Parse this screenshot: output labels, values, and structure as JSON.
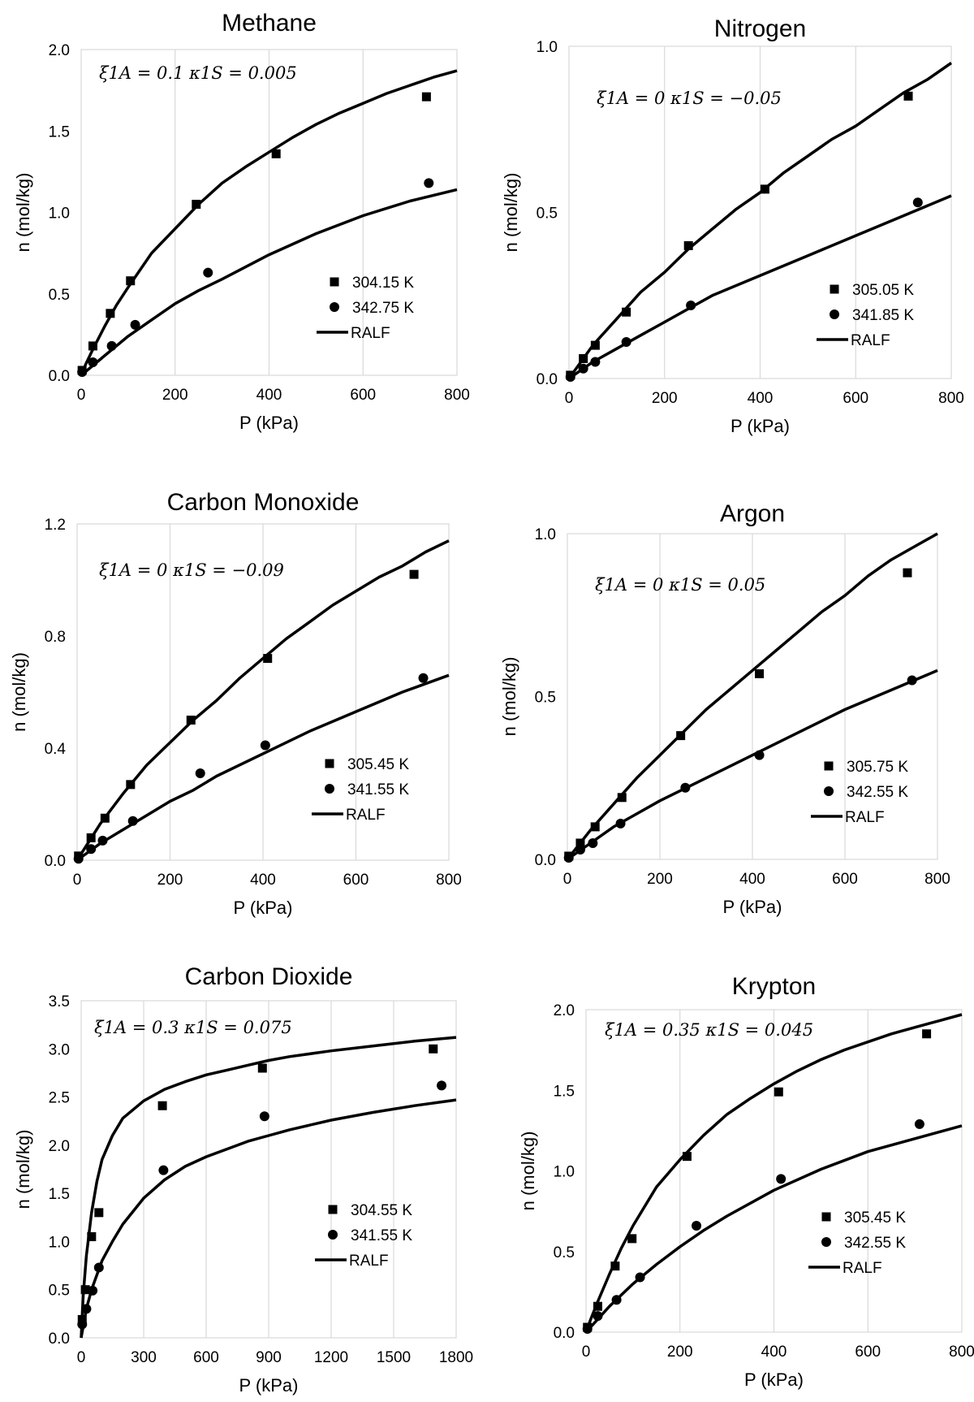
{
  "chart_data": [
    {
      "type": "scatter",
      "title": "Methane",
      "xlabel": "P (kPa)",
      "ylabel": "n (mol/kg)",
      "xlim": [
        0,
        800
      ],
      "ylim": [
        0,
        2.0
      ],
      "xticks": [
        "0",
        "200",
        "400",
        "600",
        "800"
      ],
      "yticks": [
        "0.0",
        "0.5",
        "1.0",
        "1.5",
        "2.0"
      ],
      "grid": "vertical",
      "legend_position": "lower-right",
      "annotation": "ξ1A = 0.1   κ1S = 0.005",
      "series": [
        {
          "name": "304.15 K",
          "marker": "square",
          "x": [
            2,
            25,
            62,
            105,
            245,
            415,
            735
          ],
          "y": [
            0.03,
            0.18,
            0.38,
            0.58,
            1.05,
            1.36,
            1.71
          ]
        },
        {
          "name": "342.75 K",
          "marker": "circle",
          "x": [
            2,
            25,
            65,
            115,
            270,
            740
          ],
          "y": [
            0.02,
            0.08,
            0.18,
            0.31,
            0.63,
            1.18
          ]
        },
        {
          "name": "RALF",
          "marker": "line",
          "x": [
            0,
            10,
            25,
            50,
            75,
            100,
            150,
            200,
            250,
            300,
            350,
            400,
            450,
            500,
            550,
            600,
            650,
            700,
            750,
            800
          ],
          "y": [
            0,
            0.07,
            0.16,
            0.3,
            0.43,
            0.54,
            0.75,
            0.9,
            1.05,
            1.18,
            1.28,
            1.37,
            1.46,
            1.54,
            1.61,
            1.67,
            1.73,
            1.78,
            1.83,
            1.87
          ]
        },
        {
          "name": "",
          "marker": "line",
          "x": [
            0,
            25,
            50,
            100,
            150,
            200,
            250,
            300,
            400,
            500,
            600,
            700,
            800
          ],
          "y": [
            0,
            0.06,
            0.12,
            0.24,
            0.34,
            0.44,
            0.52,
            0.59,
            0.74,
            0.87,
            0.98,
            1.07,
            1.14
          ]
        }
      ]
    },
    {
      "type": "scatter",
      "title": "Nitrogen",
      "xlabel": "P (kPa)",
      "ylabel": "n (mol/kg)",
      "xlim": [
        0,
        800
      ],
      "ylim": [
        0,
        1.0
      ],
      "xticks": [
        "0",
        "200",
        "400",
        "600",
        "800"
      ],
      "yticks": [
        "0.0",
        "0.5",
        "1.0"
      ],
      "grid": "vertical",
      "legend_position": "lower-right",
      "annotation": "ξ1A = 0   κ1S = −0.05",
      "series": [
        {
          "name": "305.05 K",
          "marker": "square",
          "x": [
            3,
            30,
            55,
            120,
            250,
            410,
            710
          ],
          "y": [
            0.01,
            0.06,
            0.1,
            0.2,
            0.4,
            0.57,
            0.85
          ]
        },
        {
          "name": "341.85 K",
          "marker": "circle",
          "x": [
            3,
            30,
            55,
            120,
            255,
            730
          ],
          "y": [
            0.005,
            0.03,
            0.05,
            0.11,
            0.22,
            0.53
          ]
        },
        {
          "name": "RALF",
          "marker": "line",
          "x": [
            0,
            50,
            100,
            150,
            200,
            250,
            300,
            350,
            400,
            450,
            500,
            550,
            600,
            650,
            700,
            750,
            800
          ],
          "y": [
            0,
            0.1,
            0.18,
            0.26,
            0.32,
            0.39,
            0.45,
            0.51,
            0.56,
            0.62,
            0.67,
            0.72,
            0.76,
            0.81,
            0.86,
            0.9,
            0.95
          ]
        },
        {
          "name": "",
          "marker": "line",
          "x": [
            0,
            50,
            100,
            150,
            200,
            250,
            300,
            400,
            500,
            600,
            700,
            800
          ],
          "y": [
            0,
            0.05,
            0.09,
            0.13,
            0.17,
            0.21,
            0.25,
            0.31,
            0.37,
            0.43,
            0.49,
            0.55
          ]
        }
      ]
    },
    {
      "type": "scatter",
      "title": "Carbon Monoxide",
      "xlabel": "P (kPa)",
      "ylabel": "n (mol/kg)",
      "xlim": [
        0,
        800
      ],
      "ylim": [
        0,
        1.2
      ],
      "xticks": [
        "0",
        "200",
        "400",
        "600",
        "800"
      ],
      "yticks": [
        "0.0",
        "0.4",
        "0.8",
        "1.2"
      ],
      "grid": "vertical",
      "legend_position": "lower-right",
      "annotation": "ξ1A = 0   κ1S = −0.09",
      "series": [
        {
          "name": "305.45 K",
          "marker": "square",
          "x": [
            3,
            30,
            60,
            115,
            245,
            410,
            725
          ],
          "y": [
            0.015,
            0.08,
            0.15,
            0.27,
            0.5,
            0.72,
            1.02
          ]
        },
        {
          "name": "341.55 K",
          "marker": "circle",
          "x": [
            3,
            30,
            55,
            120,
            265,
            405,
            745
          ],
          "y": [
            0.005,
            0.04,
            0.07,
            0.14,
            0.31,
            0.41,
            0.65
          ]
        },
        {
          "name": "RALF",
          "marker": "line",
          "x": [
            0,
            50,
            100,
            150,
            200,
            250,
            300,
            350,
            400,
            450,
            500,
            550,
            600,
            650,
            700,
            750,
            800
          ],
          "y": [
            0,
            0.13,
            0.24,
            0.34,
            0.42,
            0.5,
            0.57,
            0.65,
            0.72,
            0.79,
            0.85,
            0.91,
            0.96,
            1.01,
            1.05,
            1.1,
            1.14
          ]
        },
        {
          "name": "",
          "marker": "line",
          "x": [
            0,
            50,
            100,
            150,
            200,
            250,
            300,
            400,
            500,
            600,
            700,
            800
          ],
          "y": [
            0,
            0.06,
            0.11,
            0.16,
            0.21,
            0.25,
            0.3,
            0.38,
            0.46,
            0.53,
            0.6,
            0.66
          ]
        }
      ]
    },
    {
      "type": "scatter",
      "title": "Argon",
      "xlabel": "P (kPa)",
      "ylabel": "n (mol/kg)",
      "xlim": [
        0,
        800
      ],
      "ylim": [
        0,
        1.0
      ],
      "xticks": [
        "0",
        "200",
        "400",
        "600",
        "800"
      ],
      "yticks": [
        "0.0",
        "0.5",
        "1.0"
      ],
      "grid": "vertical",
      "legend_position": "lower-right",
      "annotation": "ξ1A = 0   κ1S = 0.05",
      "series": [
        {
          "name": "305.75 K",
          "marker": "square",
          "x": [
            3,
            28,
            60,
            118,
            245,
            415,
            735
          ],
          "y": [
            0.01,
            0.05,
            0.1,
            0.19,
            0.38,
            0.57,
            0.88
          ]
        },
        {
          "name": "342.55 K",
          "marker": "circle",
          "x": [
            3,
            28,
            55,
            115,
            255,
            415,
            745
          ],
          "y": [
            0.005,
            0.03,
            0.05,
            0.11,
            0.22,
            0.32,
            0.55
          ]
        },
        {
          "name": "RALF",
          "marker": "line",
          "x": [
            0,
            50,
            100,
            150,
            200,
            250,
            300,
            350,
            400,
            450,
            500,
            550,
            600,
            650,
            700,
            750,
            800
          ],
          "y": [
            0,
            0.09,
            0.17,
            0.25,
            0.32,
            0.39,
            0.46,
            0.52,
            0.58,
            0.64,
            0.7,
            0.76,
            0.81,
            0.87,
            0.92,
            0.96,
            1.0
          ]
        },
        {
          "name": "",
          "marker": "line",
          "x": [
            0,
            50,
            100,
            150,
            200,
            300,
            400,
            500,
            600,
            700,
            800
          ],
          "y": [
            0,
            0.05,
            0.1,
            0.14,
            0.18,
            0.25,
            0.32,
            0.39,
            0.46,
            0.52,
            0.58
          ]
        }
      ]
    },
    {
      "type": "scatter",
      "title": "Carbon Dioxide",
      "xlabel": "P (kPa)",
      "ylabel": "n (mol/kg)",
      "xlim": [
        0,
        1800
      ],
      "ylim": [
        0,
        3.5
      ],
      "xticks": [
        "0",
        "300",
        "600",
        "900",
        "1200",
        "1500",
        "1800"
      ],
      "yticks": [
        "0.0",
        "0.5",
        "1.0",
        "1.5",
        "2.0",
        "2.5",
        "3.0",
        "3.5"
      ],
      "grid": "vertical",
      "legend_position": "lower-right",
      "annotation": "ξ1A = 0.3   κ1S = 0.075",
      "series": [
        {
          "name": "304.55 K",
          "marker": "square",
          "x": [
            5,
            20,
            50,
            85,
            390,
            870,
            1690
          ],
          "y": [
            0.19,
            0.5,
            1.05,
            1.3,
            2.41,
            2.8,
            3.0
          ]
        },
        {
          "name": "341.55 K",
          "marker": "circle",
          "x": [
            5,
            25,
            55,
            85,
            395,
            880,
            1730
          ],
          "y": [
            0.14,
            0.3,
            0.49,
            0.73,
            1.74,
            2.3,
            2.62
          ]
        },
        {
          "name": "RALF",
          "marker": "line",
          "x": [
            0,
            10,
            25,
            50,
            75,
            100,
            150,
            200,
            300,
            400,
            500,
            600,
            700,
            800,
            900,
            1000,
            1200,
            1400,
            1600,
            1800
          ],
          "y": [
            0,
            0.45,
            0.85,
            1.3,
            1.62,
            1.85,
            2.1,
            2.28,
            2.46,
            2.58,
            2.66,
            2.73,
            2.78,
            2.83,
            2.88,
            2.92,
            2.98,
            3.03,
            3.08,
            3.12
          ]
        },
        {
          "name": "",
          "marker": "line",
          "x": [
            0,
            25,
            50,
            100,
            150,
            200,
            300,
            400,
            500,
            600,
            700,
            800,
            900,
            1000,
            1200,
            1400,
            1600,
            1800
          ],
          "y": [
            0,
            0.3,
            0.5,
            0.8,
            1.0,
            1.18,
            1.45,
            1.64,
            1.78,
            1.88,
            1.96,
            2.04,
            2.1,
            2.16,
            2.26,
            2.34,
            2.41,
            2.47
          ]
        }
      ]
    },
    {
      "type": "scatter",
      "title": "Krypton",
      "xlabel": "P (kPa)",
      "ylabel": "n (mol/kg)",
      "xlim": [
        0,
        800
      ],
      "ylim": [
        0,
        2.0
      ],
      "xticks": [
        "0",
        "200",
        "400",
        "600",
        "800"
      ],
      "yticks": [
        "0.0",
        "0.5",
        "1.0",
        "1.5",
        "2.0"
      ],
      "grid": "vertical",
      "legend_position": "lower-right",
      "annotation": "ξ1A = 0.35   κ1S = 0.045",
      "series": [
        {
          "name": "305.45 K",
          "marker": "square",
          "x": [
            3,
            25,
            62,
            98,
            215,
            410,
            725
          ],
          "y": [
            0.03,
            0.16,
            0.41,
            0.58,
            1.09,
            1.49,
            1.85
          ]
        },
        {
          "name": "342.55 K",
          "marker": "circle",
          "x": [
            3,
            25,
            65,
            115,
            235,
            415,
            710
          ],
          "y": [
            0.02,
            0.1,
            0.2,
            0.34,
            0.66,
            0.95,
            1.29
          ]
        },
        {
          "name": "RALF",
          "marker": "line",
          "x": [
            0,
            10,
            25,
            50,
            75,
            100,
            150,
            200,
            250,
            300,
            350,
            400,
            450,
            500,
            550,
            600,
            650,
            700,
            750,
            800
          ],
          "y": [
            0,
            0.08,
            0.19,
            0.36,
            0.52,
            0.66,
            0.9,
            1.07,
            1.22,
            1.35,
            1.45,
            1.54,
            1.62,
            1.69,
            1.75,
            1.8,
            1.85,
            1.89,
            1.93,
            1.97
          ]
        },
        {
          "name": "",
          "marker": "line",
          "x": [
            0,
            25,
            50,
            100,
            150,
            200,
            250,
            300,
            400,
            500,
            600,
            700,
            800
          ],
          "y": [
            0,
            0.08,
            0.16,
            0.3,
            0.42,
            0.53,
            0.63,
            0.72,
            0.88,
            1.01,
            1.12,
            1.2,
            1.28
          ]
        }
      ]
    }
  ]
}
